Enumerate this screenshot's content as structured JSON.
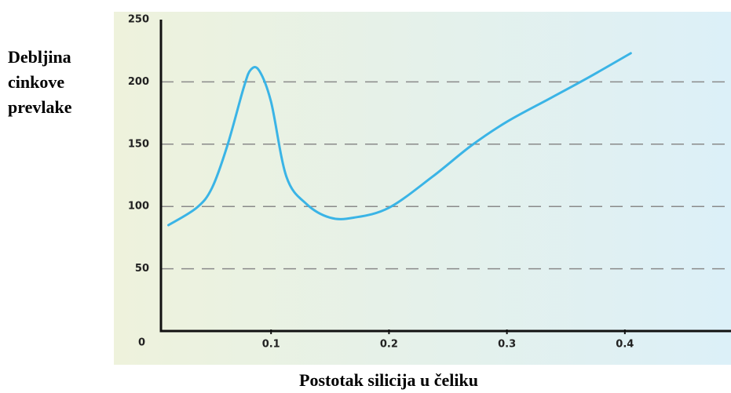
{
  "chart_data": {
    "type": "line",
    "ylabel": [
      "Debljina",
      "cinkove",
      "prevlake"
    ],
    "xlabel": "Postotak silicija u čeliku",
    "x": [
      0.013,
      0.037,
      0.05,
      0.063,
      0.077,
      0.083,
      0.09,
      0.1,
      0.113,
      0.13,
      0.15,
      0.17,
      0.2,
      0.237,
      0.27,
      0.3,
      0.337,
      0.37,
      0.405
    ],
    "series": [
      {
        "color": "#3ab4e6",
        "values": [
          85,
          99,
          115,
          149,
          196,
          210,
          209,
          184,
          124,
          102,
          91,
          91,
          99,
          124,
          149,
          168,
          187,
          204,
          223
        ]
      }
    ],
    "xlim": [
      0,
      0.49
    ],
    "xticks": [
      0.1,
      0.2,
      0.3,
      0.4
    ],
    "ylim": [
      0,
      250
    ],
    "yticks": [
      0,
      50,
      100,
      150,
      200,
      250
    ],
    "grid": true
  }
}
